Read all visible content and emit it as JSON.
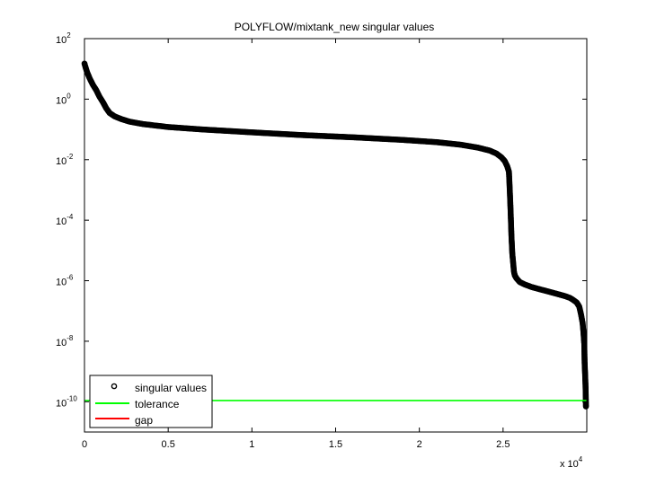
{
  "chart_data": {
    "type": "scatter",
    "title": "POLYFLOW/mixtank_new singular values",
    "xlabel": "",
    "ylabel": "",
    "x_multiplier_label": "x 10",
    "x_multiplier_exponent": "4",
    "x_tick_labels": [
      "0",
      "0.5",
      "1",
      "1.5",
      "2",
      "2.5"
    ],
    "x_ticks": [
      0,
      5000,
      10000,
      15000,
      20000,
      25000
    ],
    "xlim": [
      0,
      30000
    ],
    "y_scale": "log",
    "ylim": [
      1e-11,
      100
    ],
    "y_ticks": [
      {
        "base": "10",
        "exp": "2",
        "value": 100
      },
      {
        "base": "10",
        "exp": "0",
        "value": 1
      },
      {
        "base": "10",
        "exp": "-2",
        "value": 0.01
      },
      {
        "base": "10",
        "exp": "-4",
        "value": 0.0001
      },
      {
        "base": "10",
        "exp": "-6",
        "value": 1e-06
      },
      {
        "base": "10",
        "exp": "-8",
        "value": 1e-08
      },
      {
        "base": "10",
        "exp": "-10",
        "value": 1e-10
      }
    ],
    "grid": false,
    "legend_position": "bottom-left",
    "series": [
      {
        "name": "singular values",
        "style": "open-circle",
        "color": "#000000",
        "x": [
          0,
          50,
          150,
          300,
          500,
          700,
          900,
          1100,
          1300,
          1500,
          1800,
          2200,
          2700,
          3500,
          5000,
          7000,
          10000,
          13000,
          16000,
          19000,
          21000,
          22500,
          23500,
          24200,
          24600,
          24900,
          25100,
          25250,
          25350,
          25400,
          25450,
          25500,
          25550,
          25600,
          25650,
          25700,
          25800,
          26000,
          26300,
          26700,
          27200,
          27700,
          28200,
          28700,
          29000,
          29200,
          29400,
          29550,
          29650,
          29750,
          29800,
          29850,
          29870,
          29900,
          29920,
          29935,
          29945,
          29950
        ],
        "y": [
          15,
          12,
          8,
          5,
          3,
          2,
          1.2,
          0.8,
          0.5,
          0.35,
          0.27,
          0.22,
          0.18,
          0.15,
          0.12,
          0.1,
          0.08,
          0.065,
          0.055,
          0.045,
          0.038,
          0.031,
          0.025,
          0.02,
          0.016,
          0.012,
          0.009,
          0.006,
          0.004,
          0.001,
          0.0002,
          3e-05,
          8e-06,
          4e-06,
          2e-06,
          1.5e-06,
          1.2e-06,
          9e-07,
          7.5e-07,
          6.2e-07,
          5.2e-07,
          4.4e-07,
          3.7e-07,
          3.1e-07,
          2.7e-07,
          2.3e-07,
          1.9e-07,
          1.4e-07,
          8e-08,
          4e-08,
          2e-08,
          8e-09,
          2e-09,
          8e-10,
          4e-10,
          2e-10,
          1e-10,
          7e-11
        ]
      },
      {
        "name": "tolerance",
        "style": "line",
        "color": "#00ff00",
        "x": [
          0,
          30000
        ],
        "y": [
          1.1e-10,
          1.1e-10
        ]
      },
      {
        "name": "gap",
        "style": "line",
        "color": "#ff0000",
        "x": [],
        "y": []
      }
    ]
  }
}
